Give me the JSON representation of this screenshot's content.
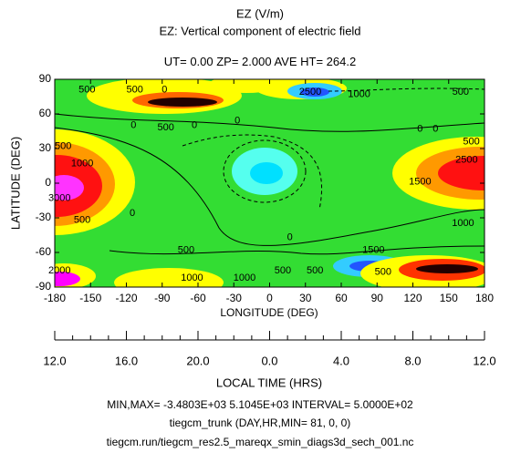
{
  "chart_data": {
    "type": "contour",
    "title": "EZ (V/m)",
    "subtitle": [
      "EZ: Vertical component of electric field",
      "UT= 0.00 ZP=  2.000 AVE HT= 264.2"
    ],
    "xlabel": "LONGITUDE (DEG)",
    "ylabel": "LATITUDE (DEG)",
    "xlim": [
      -180,
      180
    ],
    "ylim": [
      -90,
      90
    ],
    "xticks": [
      -180,
      -150,
      -120,
      -90,
      -60,
      -30,
      0,
      30,
      60,
      90,
      120,
      150,
      180
    ],
    "yticks": [
      -90,
      -60,
      -30,
      0,
      30,
      60,
      90
    ],
    "lt_label": "LOCAL TIME (HRS)",
    "lt_ticks": [
      {
        "value": 12,
        "label": "12.0"
      },
      {
        "value": 16,
        "label": "16.0"
      },
      {
        "value": 20,
        "label": "20.0"
      },
      {
        "value": 0,
        "label": "0.0"
      },
      {
        "value": 4,
        "label": "4.0"
      },
      {
        "value": 8,
        "label": "8.0"
      },
      {
        "value": 12,
        "label": "12.0"
      }
    ],
    "contour_labels": {
      "lon": [
        -153,
        -113,
        -88,
        34,
        75,
        160,
        -114,
        -87,
        -63,
        -27,
        126,
        139,
        169,
        -173,
        -157,
        165,
        126,
        -115,
        -157,
        -176,
        162,
        17,
        -70,
        87,
        11,
        38,
        95,
        -65,
        -21,
        -176
      ],
      "lat": [
        81,
        81,
        81,
        79,
        77,
        79,
        50,
        48,
        50,
        54,
        47,
        47,
        36,
        32,
        17,
        20,
        1,
        -26,
        -32,
        -13,
        -35,
        -47,
        -58,
        -58,
        -76,
        -76,
        -77,
        -82,
        -82,
        -76
      ],
      "values": [
        500,
        500,
        0,
        2500,
        1000,
        500,
        0,
        500,
        0,
        0,
        0,
        0,
        500,
        500,
        1000,
        2500,
        1500,
        0,
        500,
        3000,
        1000,
        0,
        500,
        1500,
        500,
        500,
        500,
        1000,
        1000,
        2000
      ]
    },
    "footer": [
      "MIN,MAX= -3.4803E+03  5.1045E+03 INTERVAL=  5.0000E+02",
      "tiegcm_trunk (DAY,HR,MIN= 81, 0, 0)",
      "tiegcm.run/tiegcm_res2.5_mareqx_smin_diags3d_sech_001.nc"
    ]
  }
}
